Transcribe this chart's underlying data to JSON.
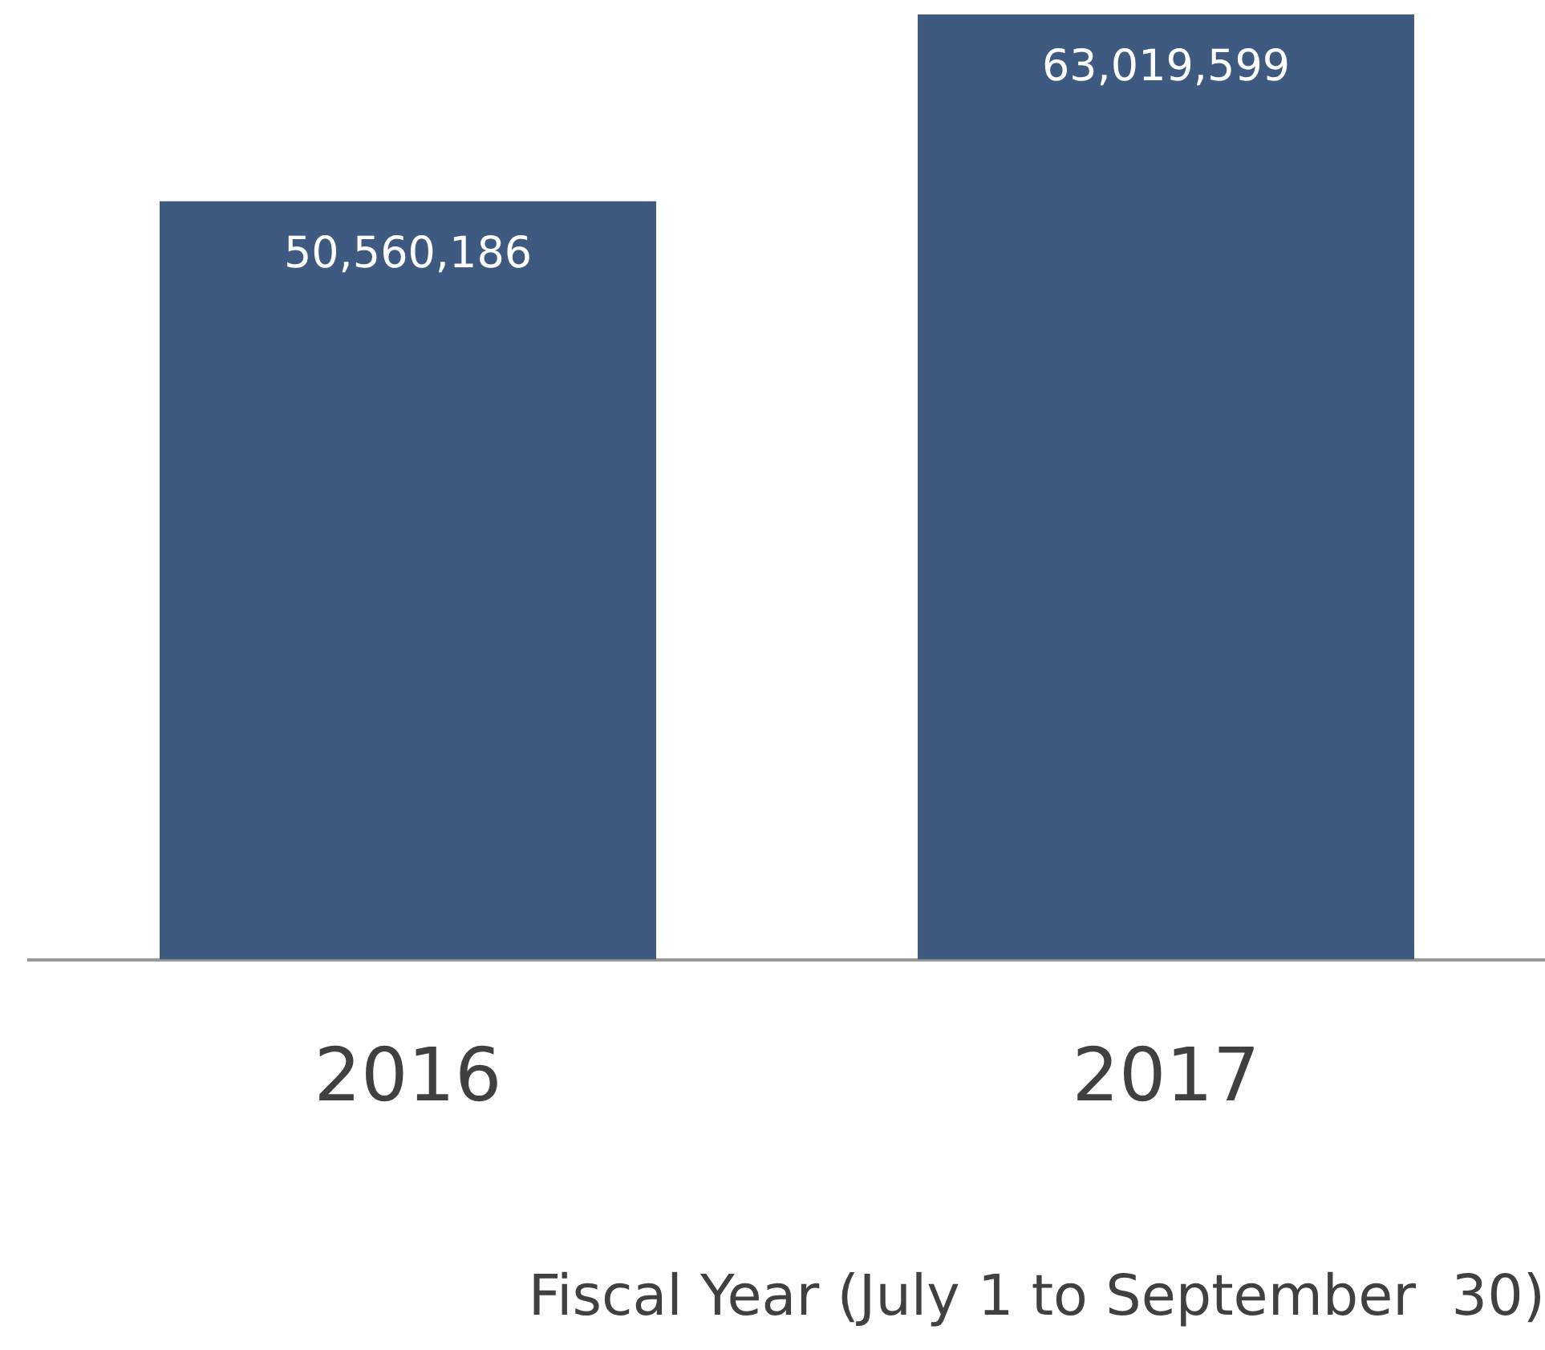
{
  "chart_data": {
    "type": "bar",
    "categories": [
      "2016",
      "2017"
    ],
    "values": [
      50560186,
      63019599
    ],
    "value_labels": [
      "50,560,186",
      "63,019,599"
    ],
    "color": "#3f5a80",
    "xlabel": "Fiscal Year (July 1 to September  30)"
  }
}
